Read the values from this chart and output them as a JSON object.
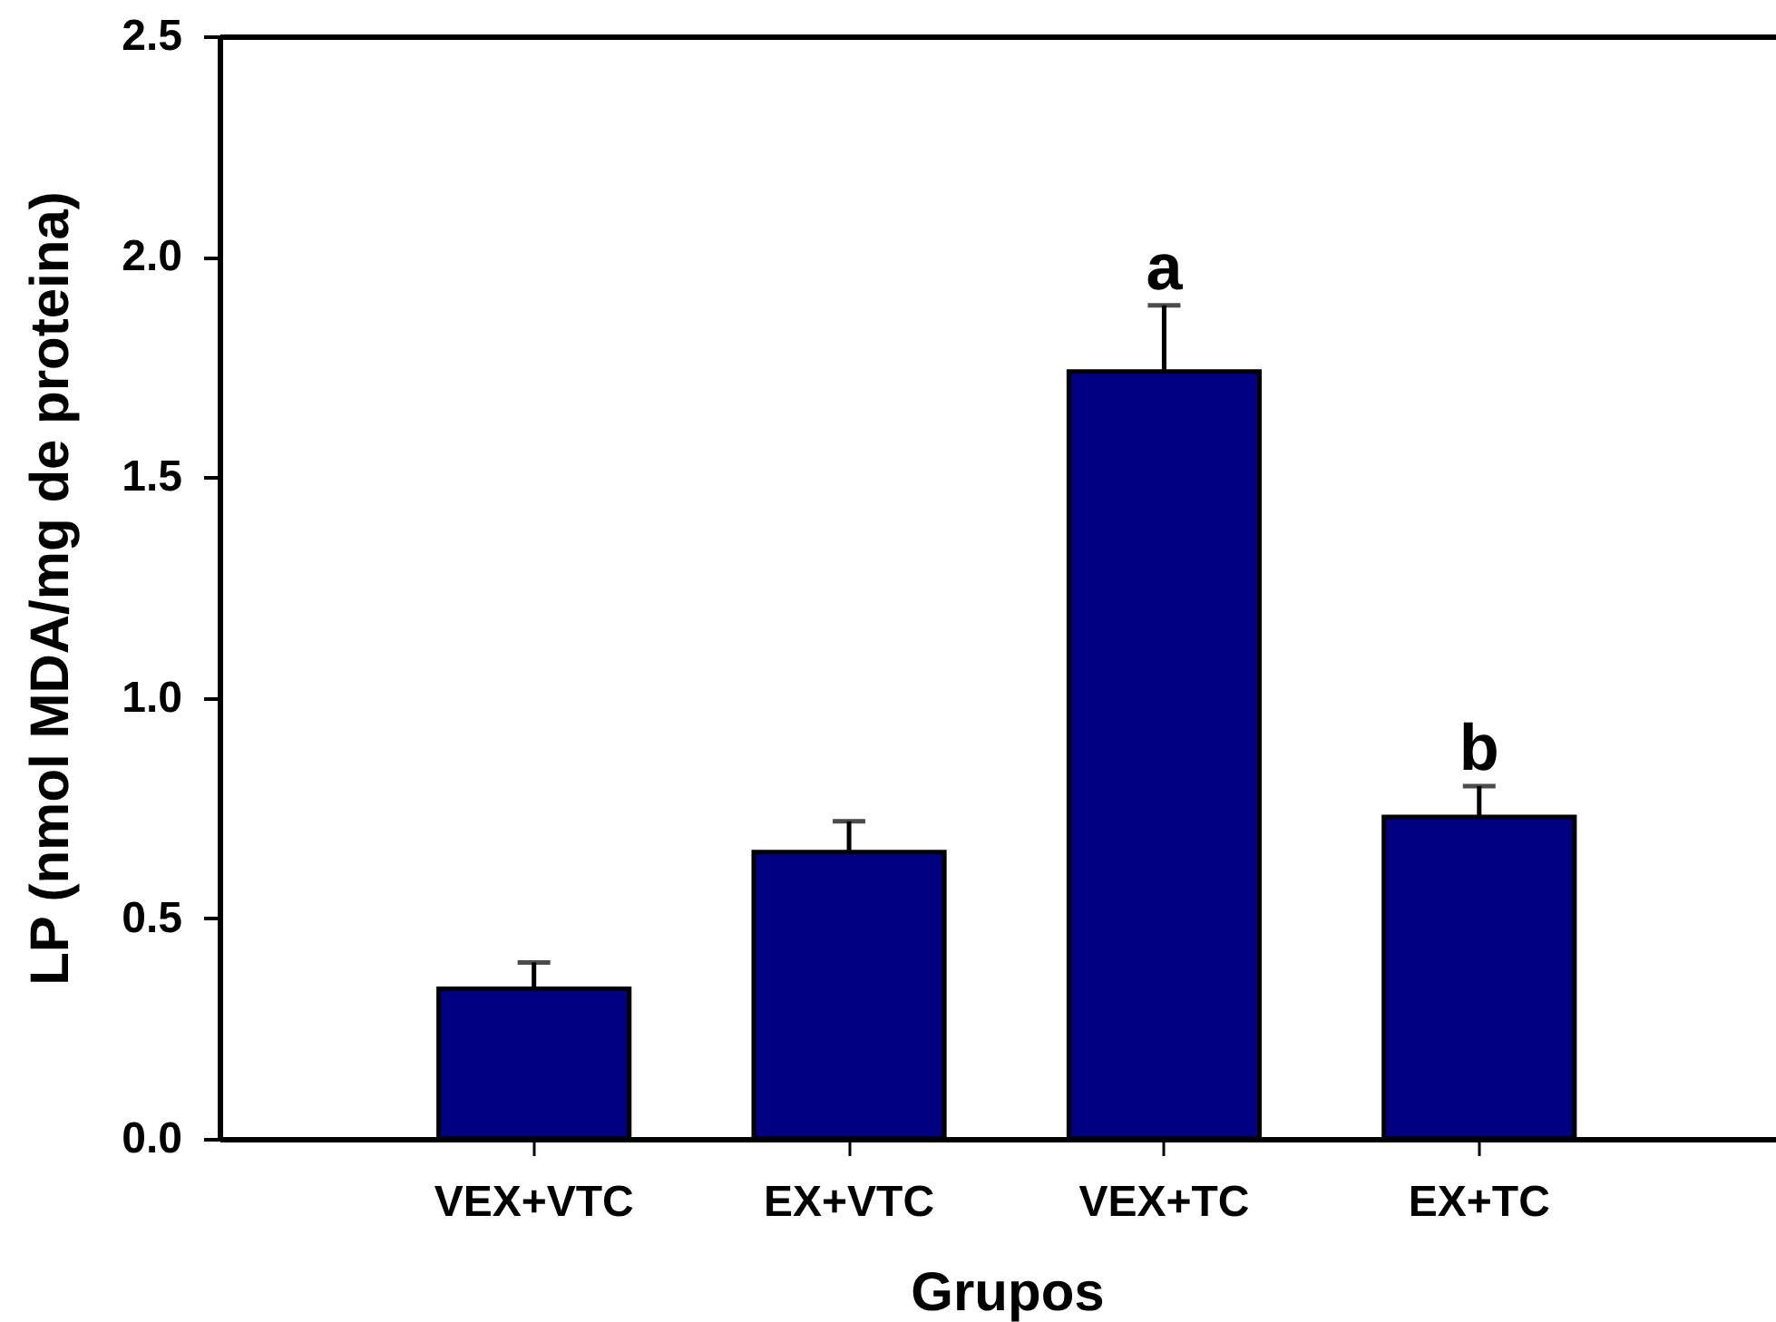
{
  "chart_data": {
    "type": "bar",
    "xlabel": "Grupos",
    "ylabel": "LP (nmol MDA/mg de proteina)",
    "categories": [
      "VEX+VTC",
      "EX+VTC",
      "VEX+TC",
      "EX+TC"
    ],
    "values": [
      0.34,
      0.65,
      1.74,
      0.73
    ],
    "errors": [
      0.06,
      0.07,
      0.15,
      0.07
    ],
    "color": "#000080",
    "ylim": [
      0,
      2.5
    ],
    "yticks": [
      {
        "value": 0,
        "label": "0.0"
      },
      0.5,
      {
        "value": 1,
        "label": "1.0"
      },
      1.5,
      {
        "value": 2,
        "label": "2.0"
      },
      2.5
    ],
    "annotations": [
      {
        "text": "a",
        "x": "VEX+TC",
        "y": 1.74
      },
      {
        "text": "b",
        "x": "EX+TC",
        "y": 0.73
      }
    ]
  }
}
